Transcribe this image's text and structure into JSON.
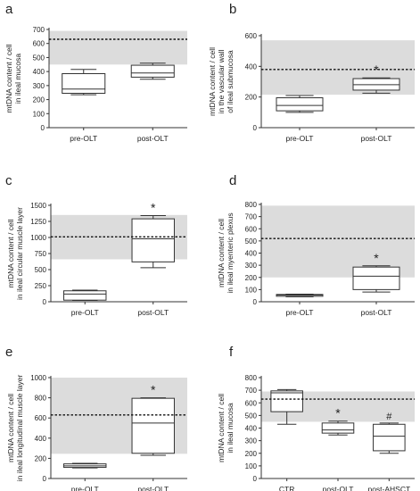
{
  "chart_data": [
    {
      "panel": "a",
      "type": "box",
      "ylabel": [
        "mtDNA content / cell",
        "in ileal mucosa"
      ],
      "ylim": [
        0,
        700
      ],
      "yticks": [
        0,
        100,
        200,
        300,
        400,
        500,
        600,
        700
      ],
      "reference_line": 630,
      "reference_band": [
        450,
        690
      ],
      "categories": [
        "pre-OLT",
        "post-OLT"
      ],
      "boxes": [
        {
          "min": 235,
          "q1": 245,
          "median": 275,
          "q3": 385,
          "max": 415,
          "mark": ""
        },
        {
          "min": 345,
          "q1": 360,
          "median": 390,
          "q3": 445,
          "max": 460,
          "mark": ""
        }
      ]
    },
    {
      "panel": "b",
      "type": "box",
      "ylabel": [
        "mtDNA content / cell",
        "in the vascular wall",
        "of ileal submucosa"
      ],
      "ylim": [
        0,
        600
      ],
      "yticks": [
        0,
        200,
        400,
        600
      ],
      "reference_line": 380,
      "reference_band": [
        215,
        570
      ],
      "categories": [
        "pre-OLT",
        "post-OLT"
      ],
      "boxes": [
        {
          "min": 100,
          "q1": 110,
          "median": 145,
          "q3": 195,
          "max": 210,
          "mark": ""
        },
        {
          "min": 225,
          "q1": 245,
          "median": 280,
          "q3": 320,
          "max": 325,
          "mark": "*"
        }
      ]
    },
    {
      "panel": "c",
      "type": "box",
      "ylabel": [
        "mtDNA content / cell",
        "in ileal circular muscle layer"
      ],
      "ylim": [
        0,
        1500
      ],
      "yticks": [
        0,
        250,
        500,
        750,
        1000,
        1250,
        1500
      ],
      "reference_line": 1010,
      "reference_band": [
        660,
        1350
      ],
      "categories": [
        "pre-OLT",
        "post-OLT"
      ],
      "boxes": [
        {
          "min": 20,
          "q1": 25,
          "median": 120,
          "q3": 170,
          "max": 180,
          "mark": ""
        },
        {
          "min": 530,
          "q1": 620,
          "median": 980,
          "q3": 1290,
          "max": 1340,
          "mark": "*"
        }
      ]
    },
    {
      "panel": "d",
      "type": "box",
      "ylabel": [
        "mtDNA content / cell",
        "in ileal myenteric plexus"
      ],
      "ylim": [
        0,
        800
      ],
      "yticks": [
        0,
        100,
        200,
        300,
        400,
        500,
        600,
        700,
        800
      ],
      "reference_line": 520,
      "reference_band": [
        200,
        790
      ],
      "categories": [
        "pre-OLT",
        "post-OLT"
      ],
      "boxes": [
        {
          "min": 40,
          "q1": 45,
          "median": 55,
          "q3": 60,
          "max": 62,
          "mark": ""
        },
        {
          "min": 80,
          "q1": 100,
          "median": 210,
          "q3": 285,
          "max": 295,
          "mark": "*"
        }
      ]
    },
    {
      "panel": "e",
      "type": "box",
      "ylabel": [
        "mtDNA content / cell",
        "in ileal longitudinal muscle layer"
      ],
      "ylim": [
        0,
        1000
      ],
      "yticks": [
        0,
        200,
        400,
        600,
        800,
        1000
      ],
      "reference_line": 630,
      "reference_band": [
        245,
        1000
      ],
      "categories": [
        "pre-OLT",
        "post-OLT"
      ],
      "boxes": [
        {
          "min": 105,
          "q1": 110,
          "median": 125,
          "q3": 145,
          "max": 150,
          "mark": ""
        },
        {
          "min": 230,
          "q1": 250,
          "median": 550,
          "q3": 795,
          "max": 800,
          "mark": "*"
        }
      ]
    },
    {
      "panel": "f",
      "type": "box",
      "ylabel": [
        "mtDNA content / cell",
        "in ileal mucosa"
      ],
      "ylim": [
        0,
        800
      ],
      "yticks": [
        0,
        100,
        200,
        300,
        400,
        500,
        600,
        700,
        800
      ],
      "reference_line": 630,
      "reference_band": [
        450,
        690
      ],
      "categories": [
        "CTR",
        "post-OLT",
        "post-AHSCT"
      ],
      "boxes": [
        {
          "min": 430,
          "q1": 530,
          "median": 680,
          "q3": 695,
          "max": 705,
          "mark": ""
        },
        {
          "min": 345,
          "q1": 360,
          "median": 385,
          "q3": 440,
          "max": 455,
          "mark": "*"
        },
        {
          "min": 200,
          "q1": 220,
          "median": 335,
          "q3": 430,
          "max": 440,
          "mark": "#"
        }
      ]
    }
  ],
  "style": {
    "band_color": "#dcdcdc",
    "box_fill": "#ffffff",
    "line_color": "#333333"
  }
}
